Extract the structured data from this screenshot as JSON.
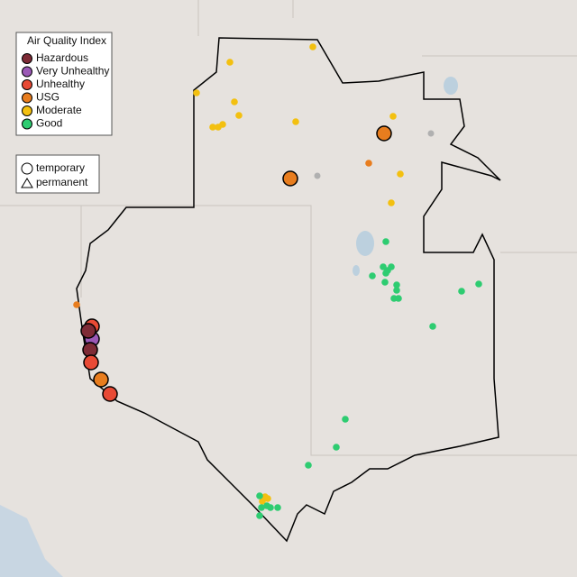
{
  "legend": {
    "title": "Air Quality Index",
    "categories": [
      {
        "label": "Hazardous",
        "color": "#7e2b36"
      },
      {
        "label": "Very Unhealthy",
        "color": "#9b59b6"
      },
      {
        "label": "Unhealthy",
        "color": "#e84a35"
      },
      {
        "label": "USG",
        "color": "#e87d1e"
      },
      {
        "label": "Moderate",
        "color": "#f3c010"
      },
      {
        "label": "Good",
        "color": "#2ecc71"
      }
    ],
    "shapes": [
      "temporary",
      "permanent"
    ]
  }
}
